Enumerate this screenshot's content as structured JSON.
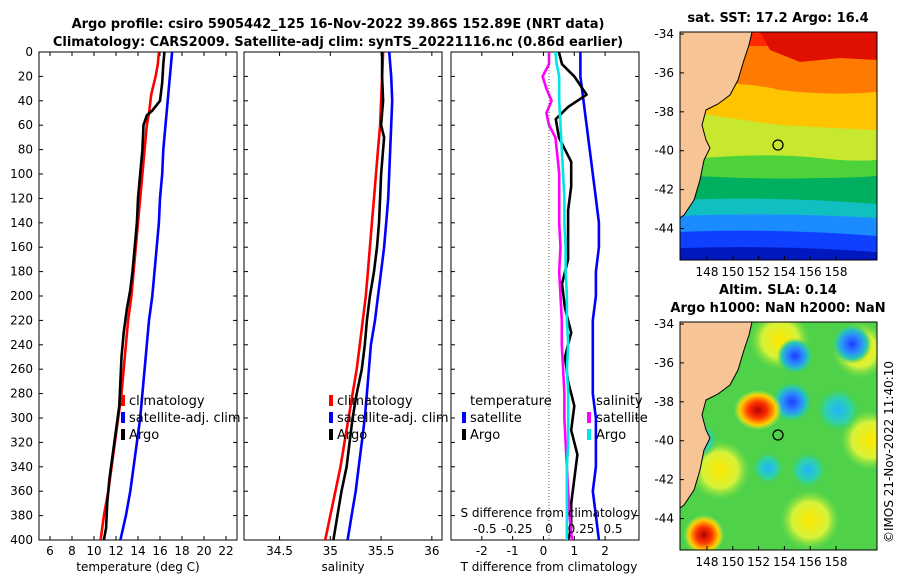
{
  "title": {
    "line1": "Argo profile: csiro 5905442_125 16-Nov-2022 39.86S 152.89E (NRT data)",
    "line2": "Climatology: CARS2009. Satellite-adj clim: synTS_20221116.nc (0.86d earlier)"
  },
  "colors": {
    "climatology": "#ff0000",
    "satellite": "#0000ff",
    "argo": "#000000",
    "salinity_satellite": "#ff00ff",
    "salinity_argo": "#00e5e5",
    "land": "#f7c496"
  },
  "depth_axis": {
    "ticks": [
      0,
      20,
      40,
      60,
      80,
      100,
      120,
      140,
      160,
      180,
      200,
      220,
      240,
      260,
      280,
      300,
      320,
      340,
      360,
      380,
      400
    ],
    "range": [
      0,
      400
    ]
  },
  "chart_data": [
    {
      "type": "line",
      "name": "temperature",
      "xlabel": "temperature (deg C)",
      "xlim": [
        5,
        23
      ],
      "xticks": [
        6,
        8,
        10,
        12,
        14,
        16,
        18,
        20,
        22
      ],
      "series": [
        {
          "name": "climatology",
          "color": "#ff0000",
          "points": [
            [
              15.9,
              0
            ],
            [
              15.8,
              10
            ],
            [
              15.6,
              20
            ],
            [
              15.2,
              35
            ],
            [
              15.0,
              50
            ],
            [
              14.8,
              60
            ],
            [
              14.6,
              80
            ],
            [
              14.4,
              100
            ],
            [
              14.2,
              120
            ],
            [
              14.0,
              140
            ],
            [
              13.8,
              160
            ],
            [
              13.6,
              180
            ],
            [
              13.4,
              200
            ],
            [
              13.1,
              220
            ],
            [
              12.9,
              240
            ],
            [
              12.7,
              260
            ],
            [
              12.5,
              280
            ],
            [
              12.2,
              300
            ],
            [
              11.9,
              320
            ],
            [
              11.6,
              340
            ],
            [
              11.3,
              360
            ],
            [
              10.9,
              380
            ],
            [
              10.6,
              400
            ]
          ]
        },
        {
          "name": "satellite-adj. clim",
          "color": "#0000ff",
          "points": [
            [
              17.1,
              0
            ],
            [
              17.0,
              10
            ],
            [
              16.9,
              20
            ],
            [
              16.7,
              40
            ],
            [
              16.5,
              60
            ],
            [
              16.3,
              80
            ],
            [
              16.2,
              100
            ],
            [
              16.0,
              120
            ],
            [
              15.9,
              140
            ],
            [
              15.7,
              160
            ],
            [
              15.5,
              180
            ],
            [
              15.3,
              200
            ],
            [
              15.0,
              220
            ],
            [
              14.8,
              240
            ],
            [
              14.6,
              260
            ],
            [
              14.4,
              280
            ],
            [
              14.2,
              300
            ],
            [
              13.9,
              320
            ],
            [
              13.6,
              340
            ],
            [
              13.3,
              360
            ],
            [
              12.9,
              380
            ],
            [
              12.4,
              400
            ]
          ]
        },
        {
          "name": "Argo",
          "color": "#000000",
          "points": [
            [
              16.4,
              0
            ],
            [
              16.3,
              10
            ],
            [
              16.2,
              25
            ],
            [
              16.0,
              40
            ],
            [
              15.3,
              48
            ],
            [
              14.8,
              52
            ],
            [
              14.5,
              60
            ],
            [
              14.4,
              80
            ],
            [
              14.2,
              100
            ],
            [
              14.0,
              120
            ],
            [
              13.9,
              140
            ],
            [
              13.7,
              160
            ],
            [
              13.5,
              180
            ],
            [
              13.3,
              195
            ],
            [
              13.0,
              210
            ],
            [
              12.7,
              230
            ],
            [
              12.5,
              250
            ],
            [
              12.4,
              270
            ],
            [
              12.3,
              290
            ],
            [
              12.0,
              310
            ],
            [
              11.7,
              330
            ],
            [
              11.4,
              350
            ],
            [
              11.2,
              370
            ],
            [
              11.1,
              390
            ],
            [
              10.9,
              400
            ]
          ]
        }
      ],
      "legend": [
        "climatology",
        "satellite-adj. clim",
        "Argo"
      ]
    },
    {
      "type": "line",
      "name": "salinity",
      "xlabel": "salinity",
      "xlim": [
        34.15,
        36.1
      ],
      "xticks": [
        34.5,
        35,
        35.5,
        36
      ],
      "xtick_labels": [
        "34.5",
        "35",
        "35.5",
        "36"
      ],
      "series": [
        {
          "name": "climatology",
          "color": "#ff0000",
          "points": [
            [
              35.52,
              0
            ],
            [
              35.51,
              20
            ],
            [
              35.5,
              40
            ],
            [
              35.49,
              60
            ],
            [
              35.47,
              80
            ],
            [
              35.45,
              100
            ],
            [
              35.43,
              120
            ],
            [
              35.41,
              140
            ],
            [
              35.39,
              160
            ],
            [
              35.37,
              180
            ],
            [
              35.35,
              200
            ],
            [
              35.32,
              220
            ],
            [
              35.29,
              240
            ],
            [
              35.26,
              260
            ],
            [
              35.22,
              280
            ],
            [
              35.18,
              300
            ],
            [
              35.14,
              320
            ],
            [
              35.1,
              340
            ],
            [
              35.05,
              360
            ],
            [
              35.0,
              380
            ],
            [
              34.95,
              400
            ]
          ]
        },
        {
          "name": "satellite-adj. clim",
          "color": "#0000ff",
          "points": [
            [
              35.58,
              0
            ],
            [
              35.6,
              20
            ],
            [
              35.61,
              40
            ],
            [
              35.6,
              60
            ],
            [
              35.59,
              80
            ],
            [
              35.58,
              100
            ],
            [
              35.57,
              120
            ],
            [
              35.55,
              140
            ],
            [
              35.53,
              160
            ],
            [
              35.5,
              180
            ],
            [
              35.47,
              200
            ],
            [
              35.44,
              220
            ],
            [
              35.4,
              240
            ],
            [
              35.38,
              260
            ],
            [
              35.36,
              280
            ],
            [
              35.34,
              300
            ],
            [
              35.31,
              320
            ],
            [
              35.28,
              340
            ],
            [
              35.25,
              360
            ],
            [
              35.21,
              380
            ],
            [
              35.17,
              400
            ]
          ]
        },
        {
          "name": "Argo",
          "color": "#000000",
          "points": [
            [
              35.51,
              0
            ],
            [
              35.51,
              20
            ],
            [
              35.52,
              40
            ],
            [
              35.5,
              60
            ],
            [
              35.53,
              70
            ],
            [
              35.52,
              80
            ],
            [
              35.5,
              100
            ],
            [
              35.49,
              120
            ],
            [
              35.48,
              140
            ],
            [
              35.46,
              160
            ],
            [
              35.43,
              180
            ],
            [
              35.39,
              200
            ],
            [
              35.36,
              220
            ],
            [
              35.34,
              240
            ],
            [
              35.31,
              260
            ],
            [
              35.26,
              280
            ],
            [
              35.22,
              300
            ],
            [
              35.19,
              320
            ],
            [
              35.16,
              340
            ],
            [
              35.11,
              360
            ],
            [
              35.07,
              380
            ],
            [
              35.03,
              400
            ]
          ]
        }
      ],
      "legend": [
        "climatology",
        "satellite-adj. clim",
        "Argo"
      ]
    },
    {
      "type": "line",
      "name": "differences",
      "xlabel": "T difference from climatology",
      "xlim": [
        -3,
        3.1
      ],
      "xticks": [
        -2,
        -1,
        0,
        1,
        2
      ],
      "top_label": "S difference from climatology",
      "top_ticks": [
        -0.5,
        -0.25,
        0,
        0.25,
        0.5
      ],
      "top_tick_labels": [
        "-0.5",
        "-0.25",
        "0",
        "0.25",
        "0.5"
      ],
      "series": [
        {
          "name": "T satellite",
          "color": "#0000ff",
          "points": [
            [
              1.2,
              0
            ],
            [
              1.2,
              20
            ],
            [
              1.3,
              40
            ],
            [
              1.4,
              60
            ],
            [
              1.5,
              80
            ],
            [
              1.6,
              100
            ],
            [
              1.7,
              120
            ],
            [
              1.8,
              140
            ],
            [
              1.8,
              160
            ],
            [
              1.7,
              180
            ],
            [
              1.7,
              200
            ],
            [
              1.6,
              220
            ],
            [
              1.6,
              240
            ],
            [
              1.6,
              260
            ],
            [
              1.6,
              280
            ],
            [
              1.7,
              300
            ],
            [
              1.7,
              320
            ],
            [
              1.7,
              340
            ],
            [
              1.6,
              360
            ],
            [
              1.7,
              380
            ],
            [
              1.8,
              400
            ]
          ]
        },
        {
          "name": "T Argo",
          "color": "#000000",
          "points": [
            [
              0.5,
              0
            ],
            [
              0.6,
              10
            ],
            [
              1.0,
              20
            ],
            [
              1.4,
              35
            ],
            [
              0.8,
              45
            ],
            [
              0.4,
              55
            ],
            [
              0.5,
              70
            ],
            [
              0.9,
              90
            ],
            [
              0.9,
              110
            ],
            [
              0.8,
              130
            ],
            [
              0.8,
              150
            ],
            [
              0.8,
              170
            ],
            [
              0.6,
              190
            ],
            [
              0.7,
              210
            ],
            [
              0.9,
              230
            ],
            [
              0.7,
              250
            ],
            [
              0.8,
              270
            ],
            [
              1.0,
              290
            ],
            [
              0.9,
              310
            ],
            [
              1.1,
              330
            ],
            [
              1.0,
              350
            ],
            [
              0.9,
              370
            ],
            [
              0.9,
              390
            ],
            [
              0.8,
              400
            ]
          ]
        },
        {
          "name": "S satellite",
          "color": "#ff00ff",
          "points": [
            [
              0.0,
              0
            ],
            [
              0.0,
              10
            ],
            [
              -0.05,
              20
            ],
            [
              -0.02,
              30
            ],
            [
              0.02,
              40
            ],
            [
              -0.02,
              50
            ],
            [
              0.0,
              60
            ],
            [
              0.05,
              70
            ],
            [
              0.06,
              80
            ],
            [
              0.07,
              90
            ],
            [
              0.08,
              100
            ],
            [
              0.08,
              120
            ],
            [
              0.08,
              140
            ],
            [
              0.09,
              160
            ],
            [
              0.08,
              180
            ],
            [
              0.09,
              200
            ],
            [
              0.1,
              220
            ],
            [
              0.1,
              240
            ],
            [
              0.11,
              260
            ],
            [
              0.12,
              280
            ],
            [
              0.12,
              300
            ],
            [
              0.13,
              320
            ],
            [
              0.14,
              340
            ],
            [
              0.15,
              360
            ],
            [
              0.16,
              380
            ],
            [
              0.18,
              400
            ]
          ]
        },
        {
          "name": "S Argo",
          "color": "#00e5e5",
          "points": [
            [
              0.05,
              0
            ],
            [
              0.06,
              10
            ],
            [
              0.08,
              20
            ],
            [
              0.08,
              40
            ],
            [
              0.09,
              60
            ],
            [
              0.1,
              80
            ],
            [
              0.11,
              100
            ],
            [
              0.12,
              120
            ],
            [
              0.12,
              140
            ],
            [
              0.13,
              160
            ],
            [
              0.13,
              180
            ],
            [
              0.14,
              200
            ],
            [
              0.14,
              220
            ],
            [
              0.15,
              240
            ],
            [
              0.14,
              260
            ],
            [
              0.15,
              280
            ],
            [
              0.15,
              300
            ],
            [
              0.15,
              320
            ],
            [
              0.14,
              340
            ],
            [
              0.14,
              360
            ],
            [
              0.14,
              380
            ],
            [
              0.14,
              400
            ]
          ]
        }
      ],
      "legend_left_title": "temperature",
      "legend_left": [
        "satellite",
        "Argo"
      ],
      "legend_right_title": "salinity",
      "legend_right": [
        "satellite",
        "Argo"
      ]
    }
  ],
  "maps": {
    "sst": {
      "title": "sat. SST: 17.2 Argo: 16.4"
    },
    "sla": {
      "title1": "Altim. SLA: 0.14",
      "title2": "Argo h1000: NaN h2000: NaN"
    },
    "lat_ticks": [
      "-34",
      "-36",
      "-38",
      "-40",
      "-42",
      "-44"
    ],
    "lon_ticks": [
      "148",
      "150",
      "152",
      "154",
      "156",
      "158"
    ],
    "float_position": {
      "lat": -39.86,
      "lon": 152.89
    }
  },
  "credit": "©IMOS 21-Nov-2022 11:40:10"
}
